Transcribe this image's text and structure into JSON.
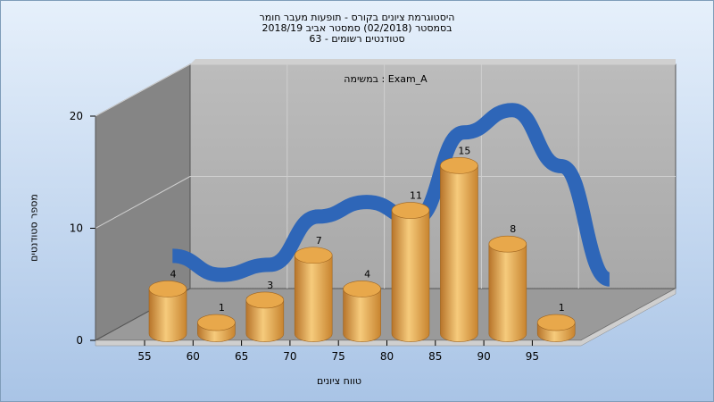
{
  "chart_data": {
    "type": "bar",
    "title_lines": [
      "היסטוגרמת ציונים בקורס - תופעות מעבר חומר",
      "בסמסטר  (02/2018)  סמסטר אביב 2018/19",
      "סטודנטים רשומים - 63"
    ],
    "subtitle": "במשימה : Exam_A",
    "xlabel": "טווח ציונים",
    "ylabel": "מספר סטודנטים",
    "ylim": [
      0,
      20
    ],
    "y_ticks": [
      "0",
      "10",
      "20"
    ],
    "x_ticks": [
      "55",
      "60",
      "65",
      "70",
      "75",
      "80",
      "85",
      "90",
      "95"
    ],
    "categories": [
      "55",
      "60",
      "65",
      "70",
      "75",
      "80",
      "85",
      "90",
      "95"
    ],
    "values": [
      4,
      1,
      3,
      7,
      4,
      11,
      15,
      8,
      1
    ],
    "value_labels": [
      "4",
      "1",
      "3",
      "7",
      "4",
      "11",
      "15",
      "8",
      "1"
    ],
    "curve_values": [
      5,
      3.3,
      4.2,
      8.5,
      9.8,
      8.3,
      16,
      18,
      13,
      2.9
    ],
    "bar_color": "#e8a84b",
    "curve_color": "#2e66b8",
    "grid": true
  }
}
